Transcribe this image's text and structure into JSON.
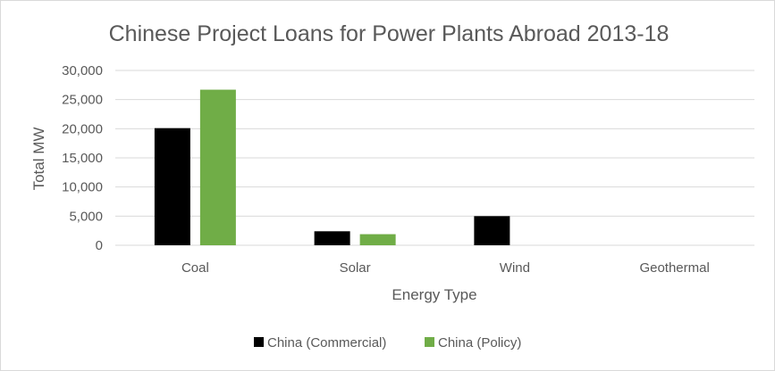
{
  "chart_data": {
    "type": "bar",
    "title": "Chinese Project Loans for Power Plants Abroad 2013-18",
    "xlabel": "Energy Type",
    "ylabel": "Total MW",
    "categories": [
      "Coal",
      "Solar",
      "Wind",
      "Geothermal"
    ],
    "series": [
      {
        "name": "China (Commercial)",
        "color": "#000000",
        "values": [
          20100,
          2400,
          5000,
          0
        ]
      },
      {
        "name": "China (Policy)",
        "color": "#70ad47",
        "values": [
          26700,
          1900,
          0,
          0
        ]
      }
    ],
    "ylim": [
      0,
      30000
    ],
    "yticks": [
      0,
      5000,
      10000,
      15000,
      20000,
      25000,
      30000
    ],
    "ytick_labels": [
      "0",
      "5,000",
      "10,000",
      "15,000",
      "20,000",
      "25,000",
      "30,000"
    ],
    "grid": true,
    "legend": "bottom"
  }
}
